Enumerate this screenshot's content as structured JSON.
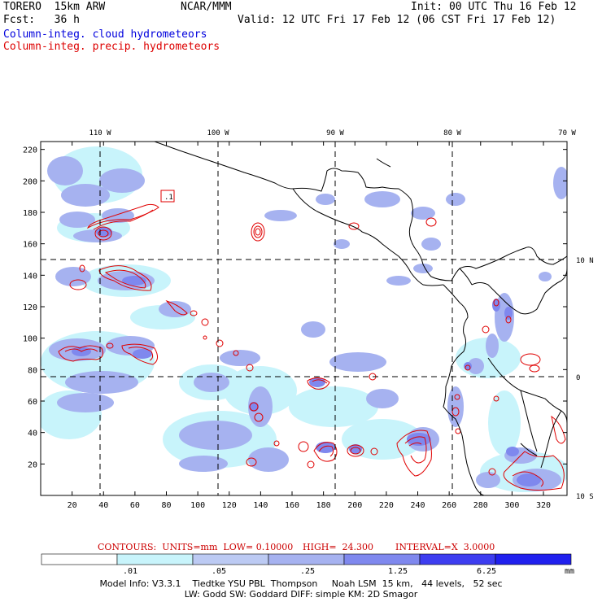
{
  "header": {
    "model": "TORERO  15km ARW",
    "org": "NCAR/MMM",
    "init": "Init: 00 UTC Thu 16 Feb 12",
    "fcst": "Fcst:   36 h",
    "valid": "Valid: 12 UTC Fri 17 Feb 12 (06 CST Fri 17 Feb 12)",
    "field1": "Column-integ. cloud hydrometeors",
    "field2": "Column-integ. precip. hydrometeors"
  },
  "map": {
    "lon_labels": [
      "110 W",
      "100 W",
      "90 W",
      "80 W",
      "70 W"
    ],
    "lat_labels": [
      "10 N",
      "0",
      "10 S"
    ],
    "x_ticks": [
      "20",
      "40",
      "60",
      "80",
      "100",
      "120",
      "140",
      "160",
      "180",
      "200",
      "220",
      "240",
      "260",
      "280",
      "300",
      "320"
    ],
    "y_ticks": [
      "220",
      "200",
      "180",
      "160",
      "140",
      "120",
      "100",
      "80",
      "60",
      "40",
      "20"
    ],
    "box_label": ".1",
    "colors": {
      "cloud_light": "#c8f4fb",
      "cloud_mid": "#a6b2f0",
      "cloud_dark": "#7f88ee",
      "precip_contour": "#e00000",
      "coast": "#000000"
    }
  },
  "colorbar": {
    "labels": [
      ".01",
      ".05",
      ".25",
      "1.25",
      "6.25",
      "mm"
    ],
    "colors": [
      "#ffffff",
      "#c8f4fb",
      "#bccaf3",
      "#a6b2f0",
      "#7f88ee",
      "#3d3df0",
      "#2020ee"
    ]
  },
  "contours": {
    "label": "CONTOURS:  UNITS=mm  LOW= 0.10000",
    "high": "HIGH=  24.300",
    "interval": "INTERVAL=X  3.0000"
  },
  "model_info": {
    "line1": "Model Info: V3.3.1    Tiedtke YSU PBL  Thompson     Noah LSM  15 km,   44 levels,   52 sec",
    "line2": "LW: Godd SW: Goddard DIFF: simple KM: 2D Smagor"
  }
}
